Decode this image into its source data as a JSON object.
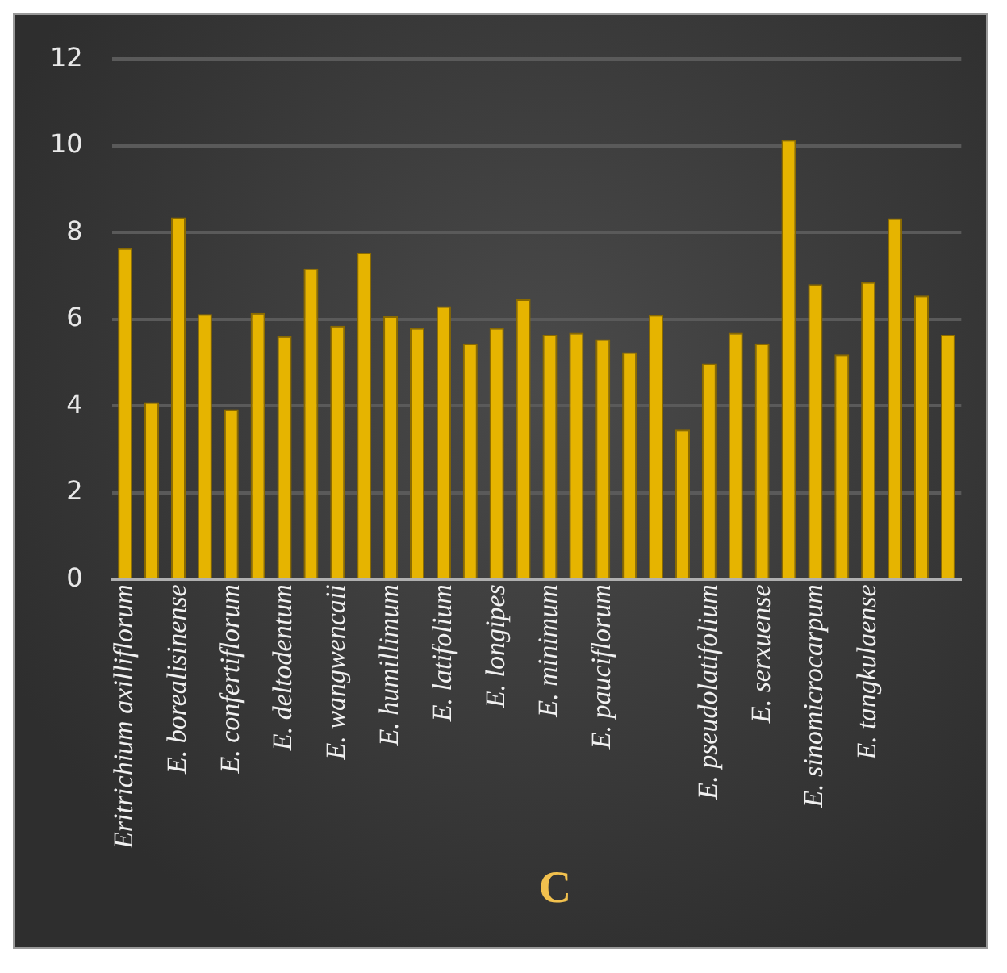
{
  "chart_data": {
    "type": "bar",
    "title": "C",
    "categories": [
      "Eritrichium axilliflorum",
      null,
      "E. borealisinense",
      null,
      "E. confertiflorum",
      null,
      "E. deltodentum",
      null,
      "E. wangwencaii",
      null,
      "E. humillimum",
      null,
      "E. latifolium",
      null,
      "E. longipes",
      null,
      "E. minimum",
      null,
      "E. pauciflorum",
      null,
      null,
      null,
      "E. pseudolatifolium",
      null,
      "E. serxuense",
      null,
      "E. sinomicrocarpum",
      null,
      "E. tangkulaense",
      null,
      null,
      null
    ],
    "values": [
      7.64,
      4.09,
      8.35,
      6.12,
      3.92,
      6.15,
      5.61,
      7.17,
      5.85,
      7.54,
      6.07,
      5.8,
      6.3,
      5.44,
      5.8,
      6.46,
      5.64,
      5.69,
      5.54,
      5.24,
      6.1,
      3.46,
      4.98,
      5.69,
      5.44,
      10.14,
      6.81,
      5.19,
      6.86,
      8.33,
      6.55,
      5.64
    ],
    "color": "#e6b400",
    "ylim": [
      0,
      12
    ],
    "yticks": [
      0,
      2,
      4,
      6,
      8,
      10,
      12
    ],
    "grid": "y"
  }
}
